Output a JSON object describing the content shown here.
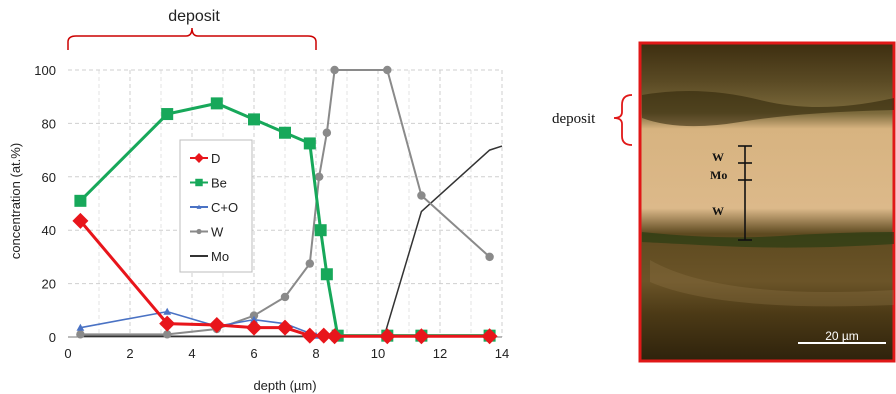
{
  "chart_data": {
    "type": "line",
    "xlabel": "depth (µm)",
    "ylabel": "concentration (at.%)",
    "xlim": [
      0,
      14
    ],
    "ylim": [
      0,
      100
    ],
    "xticks": [
      0,
      2,
      4,
      6,
      8,
      10,
      12,
      14
    ],
    "yticks": [
      0,
      20,
      40,
      60,
      80,
      100
    ],
    "grid": true,
    "legend_position": "center-left",
    "annotation": "deposit",
    "deposit_range": [
      0,
      8
    ],
    "series": [
      {
        "name": "D",
        "color": "#e8151b",
        "marker": "diamond",
        "x": [
          0.4,
          3.2,
          4.8,
          6.0,
          7.0,
          7.8,
          8.25,
          8.6,
          10.3,
          11.4,
          13.6
        ],
        "y": [
          43.5,
          5,
          4.5,
          3.5,
          3.5,
          0.5,
          0.5,
          0.3,
          0.3,
          0.3,
          0.3
        ]
      },
      {
        "name": "Be",
        "color": "#17a85a",
        "marker": "square",
        "x": [
          0.4,
          3.2,
          4.8,
          6.0,
          7.0,
          7.8,
          8.15,
          8.35,
          8.7,
          10.3,
          11.4,
          13.6
        ],
        "y": [
          51,
          83.5,
          87.5,
          81.5,
          76.5,
          72.5,
          40,
          23.5,
          0.5,
          0.5,
          0.5,
          0.5
        ]
      },
      {
        "name": "C+O",
        "color": "#4a72c4",
        "marker": "triangle",
        "x": [
          0.4,
          3.2,
          4.8,
          6.0,
          7.0,
          8.0,
          8.6,
          10.3,
          11.4,
          13.6
        ],
        "y": [
          3.5,
          9.5,
          4,
          6.5,
          5,
          0.5,
          0.3,
          0.3,
          0.3,
          0.3
        ]
      },
      {
        "name": "W",
        "color": "#8a8a8a",
        "marker": "circle",
        "x": [
          0.4,
          3.2,
          4.8,
          6.0,
          7.0,
          7.8,
          8.1,
          8.35,
          8.6,
          10.3,
          11.4,
          13.6
        ],
        "y": [
          1,
          1,
          3,
          8,
          15,
          27.5,
          60,
          76.5,
          100,
          100,
          53,
          30
        ]
      },
      {
        "name": "Mo",
        "color": "#333333",
        "marker": "none",
        "x": [
          0.4,
          8.6,
          10.2,
          11.4,
          13.6,
          14.0
        ],
        "y": [
          0.3,
          0.3,
          0.3,
          47,
          70,
          71.5
        ]
      }
    ]
  },
  "micrograph": {
    "deposit_label": "deposit",
    "layer_labels": [
      "W",
      "Mo",
      "W"
    ],
    "scale_bar_label": "20 µm"
  }
}
